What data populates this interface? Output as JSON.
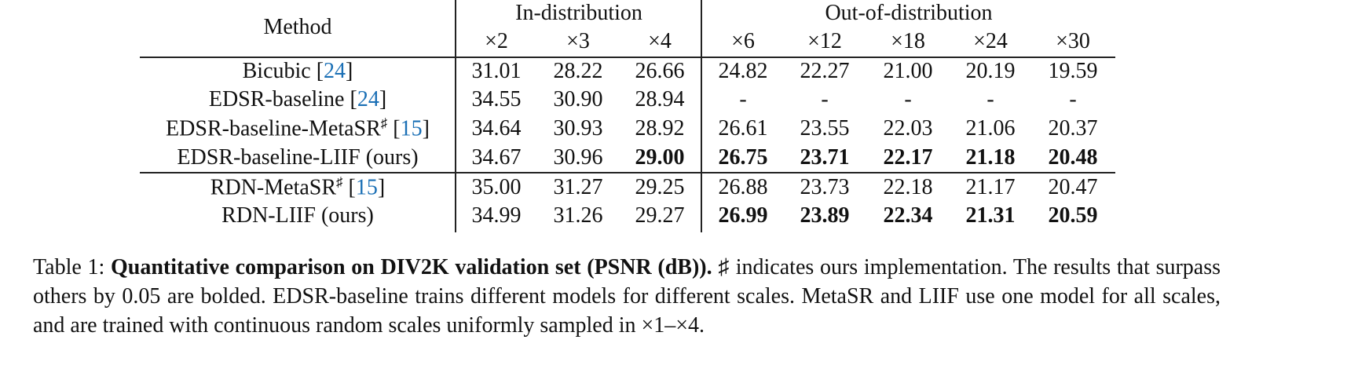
{
  "table": {
    "header": {
      "method": "Method",
      "groups": [
        "In-distribution",
        "Out-of-distribution"
      ],
      "scales": [
        "×2",
        "×3",
        "×4",
        "×6",
        "×12",
        "×18",
        "×24",
        "×30"
      ]
    },
    "cite_brackets": [
      "[",
      "]"
    ],
    "rows": [
      {
        "name": "Bicubic",
        "sup": null,
        "cite": "24",
        "values": [
          "31.01",
          "28.22",
          "26.66",
          "24.82",
          "22.27",
          "21.00",
          "20.19",
          "19.59"
        ],
        "bold": [
          false,
          false,
          false,
          false,
          false,
          false,
          false,
          false
        ]
      },
      {
        "name": "EDSR-baseline",
        "sup": null,
        "cite": "24",
        "values": [
          "34.55",
          "30.90",
          "28.94",
          "-",
          "-",
          "-",
          "-",
          "-"
        ],
        "bold": [
          false,
          false,
          false,
          false,
          false,
          false,
          false,
          false
        ]
      },
      {
        "name": "EDSR-baseline-MetaSR",
        "sup": "♯",
        "cite": "15",
        "values": [
          "34.64",
          "30.93",
          "28.92",
          "26.61",
          "23.55",
          "22.03",
          "21.06",
          "20.37"
        ],
        "bold": [
          false,
          false,
          false,
          false,
          false,
          false,
          false,
          false
        ]
      },
      {
        "name": "EDSR-baseline-LIIF (ours)",
        "sup": null,
        "cite": null,
        "values": [
          "34.67",
          "30.96",
          "29.00",
          "26.75",
          "23.71",
          "22.17",
          "21.18",
          "20.48"
        ],
        "bold": [
          false,
          false,
          true,
          true,
          true,
          true,
          true,
          true
        ]
      },
      {
        "name": "RDN-MetaSR",
        "sup": "♯",
        "cite": "15",
        "values": [
          "35.00",
          "31.27",
          "29.25",
          "26.88",
          "23.73",
          "22.18",
          "21.17",
          "20.47"
        ],
        "bold": [
          false,
          false,
          false,
          false,
          false,
          false,
          false,
          false
        ]
      },
      {
        "name": "RDN-LIIF (ours)",
        "sup": null,
        "cite": null,
        "values": [
          "34.99",
          "31.26",
          "29.27",
          "26.99",
          "23.89",
          "22.34",
          "21.31",
          "20.59"
        ],
        "bold": [
          false,
          false,
          false,
          true,
          true,
          true,
          true,
          true
        ]
      }
    ]
  },
  "caption": {
    "label": "Table 1:",
    "title": "Quantitative comparison on DIV2K validation set (PSNR (dB)).",
    "text": "♯ indicates ours implementation. The results that surpass others by 0.05 are bolded. EDSR-baseline trains different models for different scales. MetaSR and LIIF use one model for all scales, and are trained with continuous random scales uniformly sampled in ×1–×4."
  }
}
